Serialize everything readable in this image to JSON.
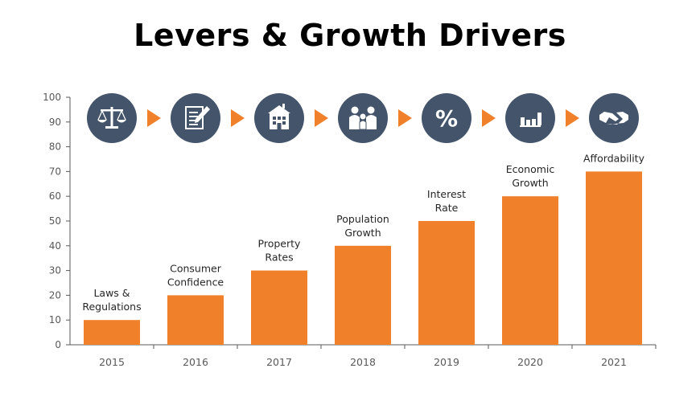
{
  "title": "Levers & Growth Drivers",
  "colors": {
    "bar": "#F0812A",
    "circle": "#44546A",
    "arrow": "#F0812A",
    "axis": "#595959"
  },
  "icons": [
    "scales-icon",
    "document-edit-icon",
    "building-icon",
    "family-icon",
    "percent-icon",
    "bar-chart-icon",
    "handshake-icon"
  ],
  "chart_data": {
    "type": "bar",
    "categories": [
      "2015",
      "2016",
      "2017",
      "2018",
      "2019",
      "2020",
      "2021"
    ],
    "values": [
      10,
      20,
      30,
      40,
      50,
      60,
      70
    ],
    "bar_labels": [
      [
        "Laws &",
        "Regulations"
      ],
      [
        "Consumer",
        "Confidence"
      ],
      [
        "Property",
        "Rates"
      ],
      [
        "Population",
        "Growth"
      ],
      [
        "Interest",
        "Rate"
      ],
      [
        "Economic",
        "Growth"
      ],
      [
        "Affordability"
      ]
    ],
    "yticks": [
      "0",
      "10",
      "20",
      "30",
      "40",
      "50",
      "60",
      "70",
      "80",
      "90",
      "100"
    ],
    "ylim": [
      0,
      100
    ],
    "grid": false,
    "legend": "none"
  }
}
